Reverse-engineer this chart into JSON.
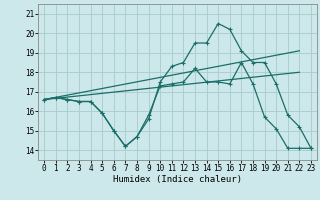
{
  "bg_color": "#cde8ea",
  "grid_color": "#aecfd2",
  "line_color": "#1a6e6a",
  "xlabel": "Humidex (Indice chaleur)",
  "xlim_min": -0.5,
  "xlim_max": 23.5,
  "ylim_min": 13.5,
  "ylim_max": 21.5,
  "xticks": [
    0,
    1,
    2,
    3,
    4,
    5,
    6,
    7,
    8,
    9,
    10,
    11,
    12,
    13,
    14,
    15,
    16,
    17,
    18,
    19,
    20,
    21,
    22,
    23
  ],
  "yticks": [
    14,
    15,
    16,
    17,
    18,
    19,
    20,
    21
  ],
  "series_top_x": [
    0,
    1,
    2,
    3,
    4,
    5,
    6,
    7,
    8,
    9,
    10,
    11,
    12,
    13,
    14,
    15,
    16,
    17,
    18,
    19,
    20,
    21,
    22,
    23
  ],
  "series_top_y": [
    16.6,
    16.7,
    16.6,
    16.5,
    16.5,
    15.9,
    15.0,
    14.2,
    14.7,
    15.6,
    17.5,
    18.3,
    18.5,
    19.5,
    19.5,
    20.5,
    20.2,
    19.1,
    18.5,
    18.5,
    17.4,
    15.8,
    15.2,
    14.1
  ],
  "series_bot_x": [
    0,
    1,
    2,
    3,
    4,
    5,
    6,
    7,
    8,
    9,
    10,
    11,
    12,
    13,
    14,
    15,
    16,
    17,
    18,
    19,
    20,
    21,
    22,
    23
  ],
  "series_bot_y": [
    16.6,
    16.7,
    16.6,
    16.5,
    16.5,
    15.9,
    15.0,
    14.2,
    14.7,
    15.8,
    17.3,
    17.4,
    17.5,
    18.2,
    17.5,
    17.5,
    17.4,
    18.5,
    17.4,
    15.7,
    15.1,
    14.1,
    14.1,
    14.1
  ],
  "trend1_x": [
    0,
    22
  ],
  "trend1_y": [
    16.6,
    19.1
  ],
  "trend2_x": [
    0,
    22
  ],
  "trend2_y": [
    16.6,
    18.0
  ],
  "tick_fontsize": 5.5,
  "xlabel_fontsize": 6.5
}
